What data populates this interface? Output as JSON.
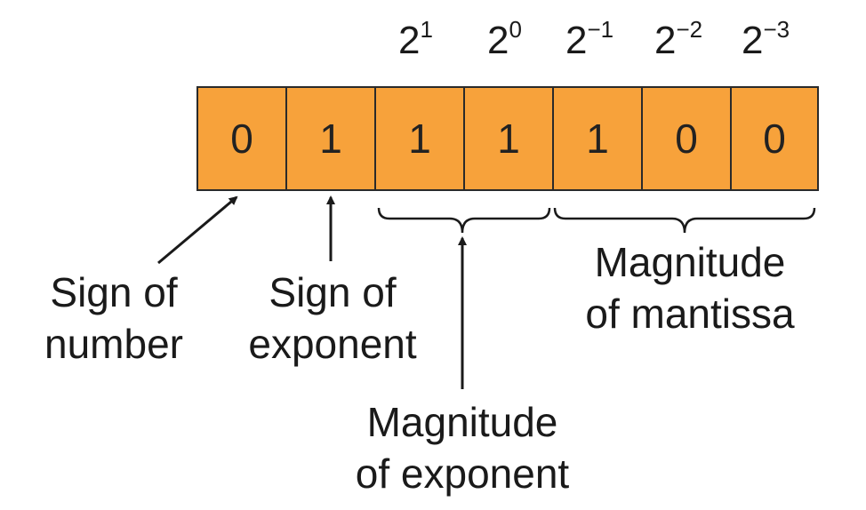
{
  "powers": [
    {
      "base": "2",
      "exp": "1"
    },
    {
      "base": "2",
      "exp": "0"
    },
    {
      "base": "2",
      "exp": "−1"
    },
    {
      "base": "2",
      "exp": "−2"
    },
    {
      "base": "2",
      "exp": "−3"
    }
  ],
  "bits": [
    "0",
    "1",
    "1",
    "1",
    "1",
    "0",
    "0"
  ],
  "labels": {
    "sign_number": [
      "Sign of",
      "number"
    ],
    "sign_exponent": [
      "Sign of",
      "exponent"
    ],
    "magnitude_exponent": [
      "Magnitude",
      "of exponent"
    ],
    "magnitude_mantissa": [
      "Magnitude",
      "of mantissa"
    ]
  },
  "colors": {
    "cell_fill": "#F7A23B",
    "cell_border": "#2a2a2a",
    "ink": "#1a1a1a"
  }
}
